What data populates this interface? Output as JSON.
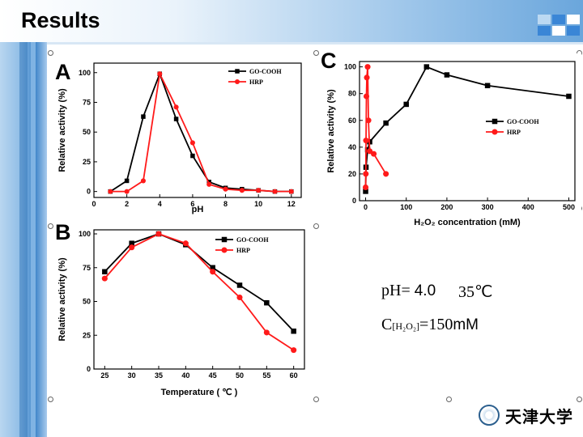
{
  "slide": {
    "title": "Results"
  },
  "conditions": {
    "ph_label": "pH=",
    "ph_value": "4.0",
    "temperature": "35℃",
    "conc_prefix": "C",
    "conc_subscript": "[H₂O₂]",
    "conc_value": "=150",
    "conc_unit": "mM"
  },
  "logo": {
    "text": "天津大学"
  },
  "colors": {
    "go_cooh": "#000000",
    "hrp": "#ff1a1a"
  },
  "chart_data": [
    {
      "id": "A",
      "type": "line",
      "panel_label": "A",
      "xlabel": "pH",
      "ylabel": "Relative activity (%)",
      "xlim": [
        0,
        12.6
      ],
      "ylim": [
        -5,
        108
      ],
      "xticks": [
        0,
        2,
        4,
        6,
        8,
        10,
        12
      ],
      "yticks": [
        0,
        25,
        50,
        75,
        100
      ],
      "legend_position": "top-right",
      "series": [
        {
          "name": "GO-COOH",
          "color": "#000000",
          "marker": "square",
          "x": [
            1,
            2,
            3,
            4,
            5,
            6,
            7,
            8,
            9,
            10,
            11,
            12
          ],
          "y": [
            0,
            9,
            63,
            99,
            61,
            30,
            8,
            3,
            2,
            1,
            0,
            0
          ]
        },
        {
          "name": "HRP",
          "color": "#ff1a1a",
          "marker": "circle",
          "x": [
            1,
            2,
            3,
            4,
            5,
            6,
            7,
            8,
            9,
            10,
            11,
            12
          ],
          "y": [
            0,
            0,
            9,
            99,
            71,
            41,
            6,
            2,
            1,
            1,
            0,
            0
          ]
        }
      ]
    },
    {
      "id": "B",
      "type": "line",
      "panel_label": "B",
      "xlabel": "Temperature ( ℃ )",
      "ylabel": "Relative activity (%)",
      "xlim": [
        23,
        62
      ],
      "ylim": [
        0,
        103
      ],
      "xticks": [
        25,
        30,
        35,
        40,
        45,
        50,
        55,
        60
      ],
      "yticks": [
        0,
        25,
        50,
        75,
        100
      ],
      "legend_position": "top-right",
      "series": [
        {
          "name": "GO-COOH",
          "color": "#000000",
          "marker": "square",
          "x": [
            25,
            30,
            35,
            40,
            45,
            50,
            55,
            60
          ],
          "y": [
            72,
            93,
            100,
            92,
            75,
            62,
            49,
            28
          ]
        },
        {
          "name": "HRP",
          "color": "#ff1a1a",
          "marker": "circle",
          "x": [
            25,
            30,
            35,
            40,
            45,
            50,
            55,
            60
          ],
          "y": [
            67,
            90,
            100,
            93,
            72,
            53,
            27,
            14
          ]
        }
      ]
    },
    {
      "id": "C",
      "type": "line",
      "panel_label": "C",
      "xlabel": "H₂O₂ concentration (mM)",
      "ylabel": "Relative activity (%)",
      "xlim": [
        -15,
        515
      ],
      "ylim": [
        0,
        104
      ],
      "xticks": [
        0,
        100,
        200,
        300,
        400,
        500
      ],
      "yticks": [
        0,
        20,
        40,
        60,
        80,
        100
      ],
      "legend_position": "right",
      "series": [
        {
          "name": "GO-COOH",
          "color": "#000000",
          "marker": "square",
          "x": [
            0,
            1,
            5,
            10,
            50,
            100,
            150,
            200,
            300,
            500
          ],
          "y": [
            7,
            25,
            38,
            44,
            58,
            72,
            100,
            94,
            86,
            78
          ]
        },
        {
          "name": "HRP",
          "color": "#ff1a1a",
          "marker": "circle",
          "x": [
            0,
            0.5,
            1,
            2,
            3,
            5,
            7,
            10,
            20,
            50
          ],
          "y": [
            10,
            20,
            45,
            78,
            92,
            100,
            60,
            37,
            35,
            20
          ]
        }
      ]
    }
  ]
}
